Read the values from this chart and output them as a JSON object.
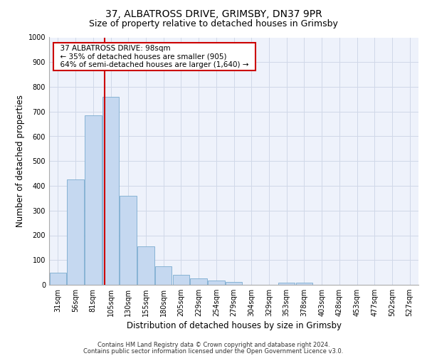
{
  "title_line1": "37, ALBATROSS DRIVE, GRIMSBY, DN37 9PR",
  "title_line2": "Size of property relative to detached houses in Grimsby",
  "xlabel": "Distribution of detached houses by size in Grimsby",
  "ylabel": "Number of detached properties",
  "footer_line1": "Contains HM Land Registry data © Crown copyright and database right 2024.",
  "footer_line2": "Contains public sector information licensed under the Open Government Licence v3.0.",
  "bar_labels": [
    "31sqm",
    "56sqm",
    "81sqm",
    "105sqm",
    "130sqm",
    "155sqm",
    "180sqm",
    "205sqm",
    "229sqm",
    "254sqm",
    "279sqm",
    "304sqm",
    "329sqm",
    "353sqm",
    "378sqm",
    "403sqm",
    "428sqm",
    "453sqm",
    "477sqm",
    "502sqm",
    "527sqm"
  ],
  "bar_values": [
    50,
    425,
    685,
    760,
    360,
    155,
    75,
    40,
    25,
    18,
    12,
    0,
    0,
    8,
    8,
    0,
    0,
    0,
    0,
    0,
    0
  ],
  "bar_color": "#c5d8f0",
  "bar_edge_color": "#7aabcf",
  "vline_x": 2.67,
  "vline_color": "#cc0000",
  "annotation_text": "  37 ALBATROSS DRIVE: 98sqm  \n  ← 35% of detached houses are smaller (905)  \n  64% of semi-detached houses are larger (1,640) →  ",
  "annotation_box_color": "#cc0000",
  "ylim": [
    0,
    1000
  ],
  "yticks": [
    0,
    100,
    200,
    300,
    400,
    500,
    600,
    700,
    800,
    900,
    1000
  ],
  "grid_color": "#d0d8e8",
  "bg_color": "#eef2fb",
  "title_fontsize": 10,
  "subtitle_fontsize": 9,
  "axis_label_fontsize": 8.5,
  "tick_fontsize": 7,
  "footer_fontsize": 6,
  "annotation_fontsize": 7.5
}
